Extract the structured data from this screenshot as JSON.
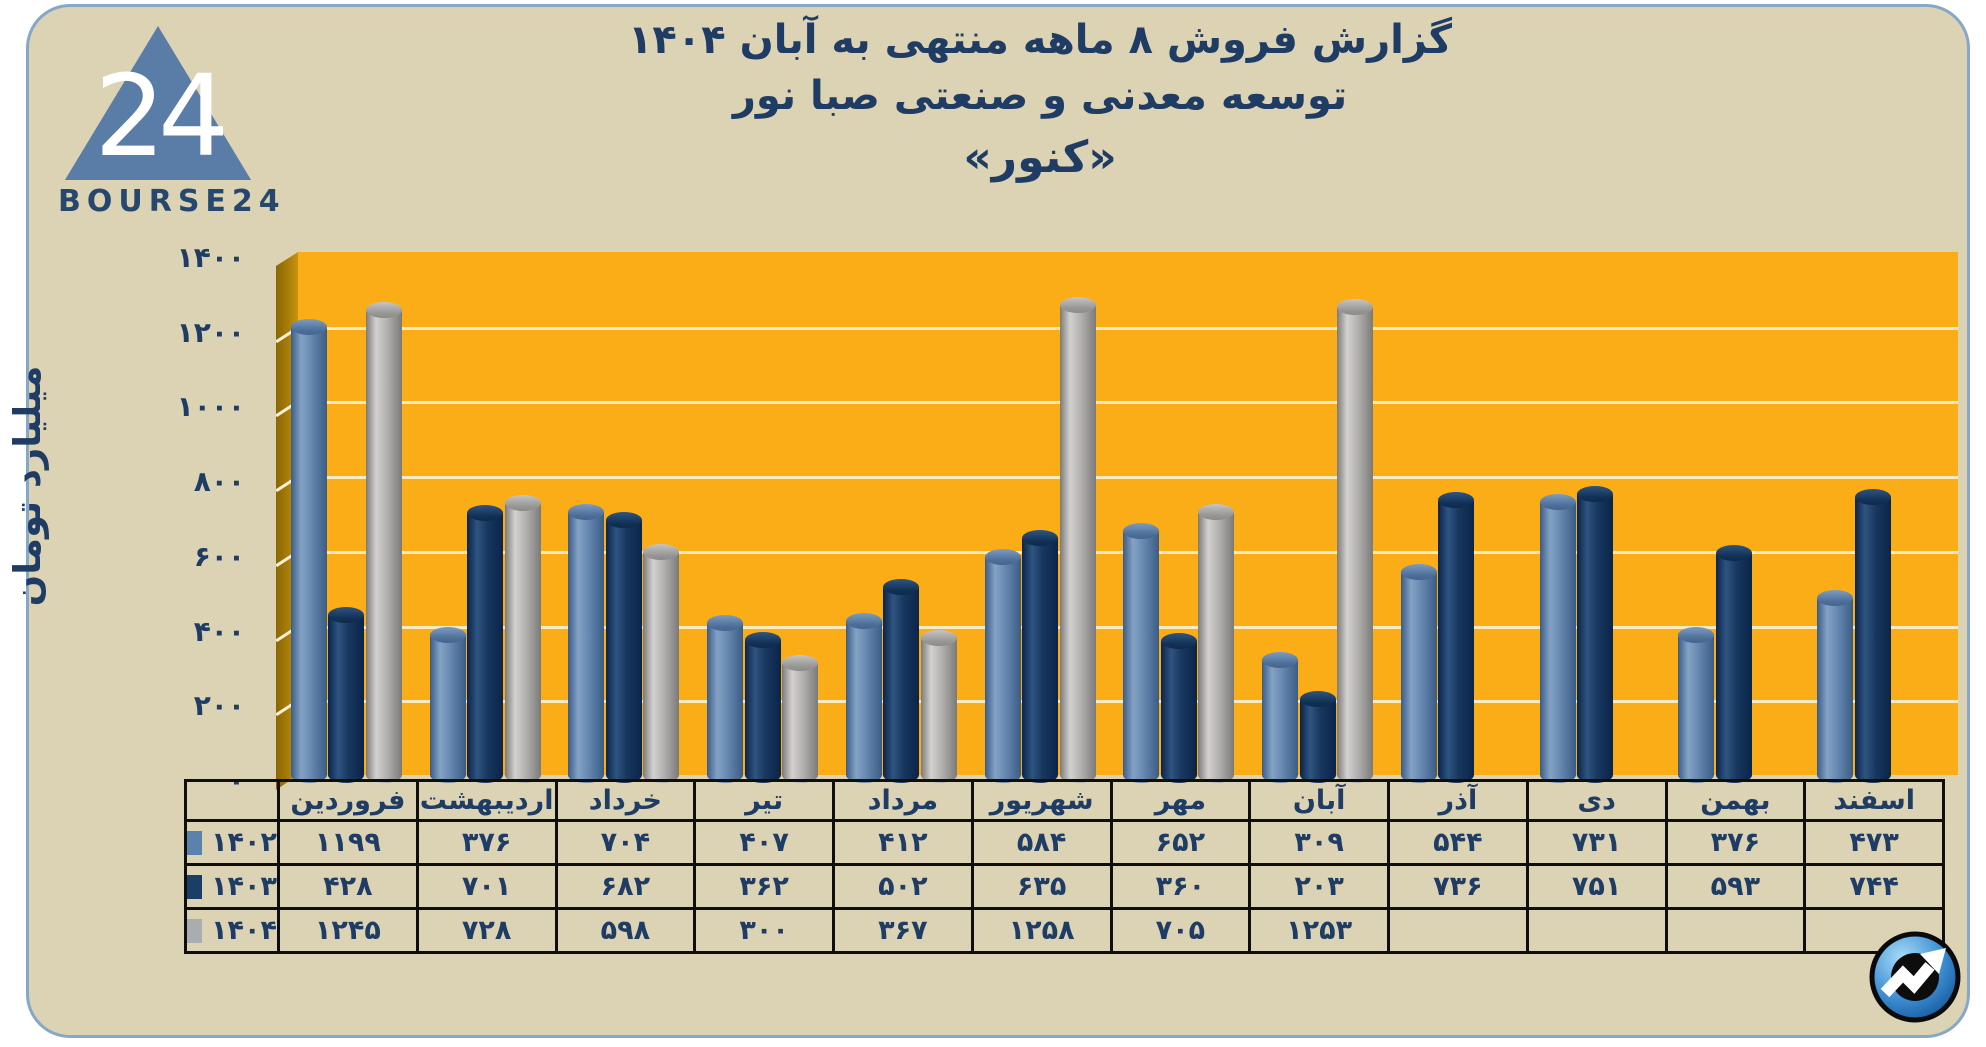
{
  "card": {
    "background": "#dcd2b4",
    "border_color": "#86a8c8"
  },
  "logo": {
    "brand": "BOURSE24",
    "triangle_number": "24",
    "triangle_color": "#5a7da8",
    "text_color": "#27486e"
  },
  "title": {
    "line1": "گزارش  فروش ۸ ماهه منتهی به آبان ۱۴۰۴",
    "line2": "توسعه معدنی و صنعتی صبا نور",
    "line3": "«کنور»",
    "color": "#1e3c64"
  },
  "chart_data": {
    "type": "bar",
    "title": "گزارش فروش ۸ ماهه منتهی به آبان ۱۴۰۴",
    "subtitle": "توسعه معدنی و صنعتی صبا نور «کنور»",
    "ylabel": "میلیارد تومان",
    "xlabel": "",
    "ylim": [
      0,
      1400
    ],
    "ytick_step": 200,
    "yticks": [
      {
        "value": 0,
        "label": "۰"
      },
      {
        "value": 200,
        "label": "۲۰۰"
      },
      {
        "value": 400,
        "label": "۴۰۰"
      },
      {
        "value": 600,
        "label": "۶۰۰"
      },
      {
        "value": 800,
        "label": "۸۰۰"
      },
      {
        "value": 1000,
        "label": "۱۰۰۰"
      },
      {
        "value": 1200,
        "label": "۱۲۰۰"
      },
      {
        "value": 1400,
        "label": "۱۴۰۰"
      }
    ],
    "grid": "horizontal-on",
    "legend_position": "left-of-table-rows",
    "plot_background": "#fbad18",
    "wall_color": "#a87d08",
    "gridline_color": "#fcf4de",
    "categories": [
      "فروردین",
      "اردیبهشت",
      "خرداد",
      "تیر",
      "مرداد",
      "شهریور",
      "مهر",
      "آبان",
      "آذر",
      "دی",
      "بهمن",
      "اسفند"
    ],
    "series": [
      {
        "name": "۱۴۰۲",
        "swatch_color": "#5b82ad",
        "values": [
          1199,
          376,
          704,
          407,
          412,
          584,
          652,
          309,
          544,
          731,
          376,
          473
        ],
        "display": [
          "۱۱۹۹",
          "۳۷۶",
          "۷۰۴",
          "۴۰۷",
          "۴۱۲",
          "۵۸۴",
          "۶۵۲",
          "۳۰۹",
          "۵۴۴",
          "۷۳۱",
          "۳۷۶",
          "۴۷۳"
        ],
        "body_gradient": "linear-gradient(90deg,#3a5c85 0%,#84a2c5 28%,#6587af 58%,#3a5c85 100%)",
        "cap_gradient": "linear-gradient(180deg,#7d9cc0 0%,#4d6f99 70%,#44658e 100%)"
      },
      {
        "name": "۱۴۰۳",
        "swatch_color": "#1b3e66",
        "values": [
          428,
          701,
          682,
          362,
          502,
          635,
          360,
          203,
          736,
          751,
          593,
          744
        ],
        "display": [
          "۴۲۸",
          "۷۰۱",
          "۶۸۲",
          "۳۶۲",
          "۵۰۲",
          "۶۳۵",
          "۳۶۰",
          "۲۰۳",
          "۷۳۶",
          "۷۵۱",
          "۵۹۳",
          "۷۴۴"
        ],
        "body_gradient": "linear-gradient(90deg,#0b2449 0%,#2e5480 28%,#17375f 58%,#0b2449 100%)",
        "cap_gradient": "linear-gradient(180deg,#2f5583 0%,#123155 70%,#0e2a4c 100%)"
      },
      {
        "name": "۱۴۰۴",
        "swatch_color": "#a9adb0",
        "values": [
          1245,
          728,
          598,
          300,
          367,
          1258,
          705,
          1253,
          null,
          null,
          null,
          null
        ],
        "display": [
          "۱۲۴۵",
          "۷۲۸",
          "۵۹۸",
          "۳۰۰",
          "۳۶۷",
          "۱۲۵۸",
          "۷۰۵",
          "۱۲۵۳",
          "",
          "",
          "",
          ""
        ],
        "body_gradient": "linear-gradient(90deg,#7b7a78 0%,#d2d1cf 28%,#b2b1af 58%,#7b7a78 100%)",
        "cap_gradient": "linear-gradient(180deg,#c6c5c3 0%,#979795 70%,#8b8a88 100%)"
      }
    ]
  },
  "app_icon": {
    "label": "bourse24-trend-arrow"
  }
}
